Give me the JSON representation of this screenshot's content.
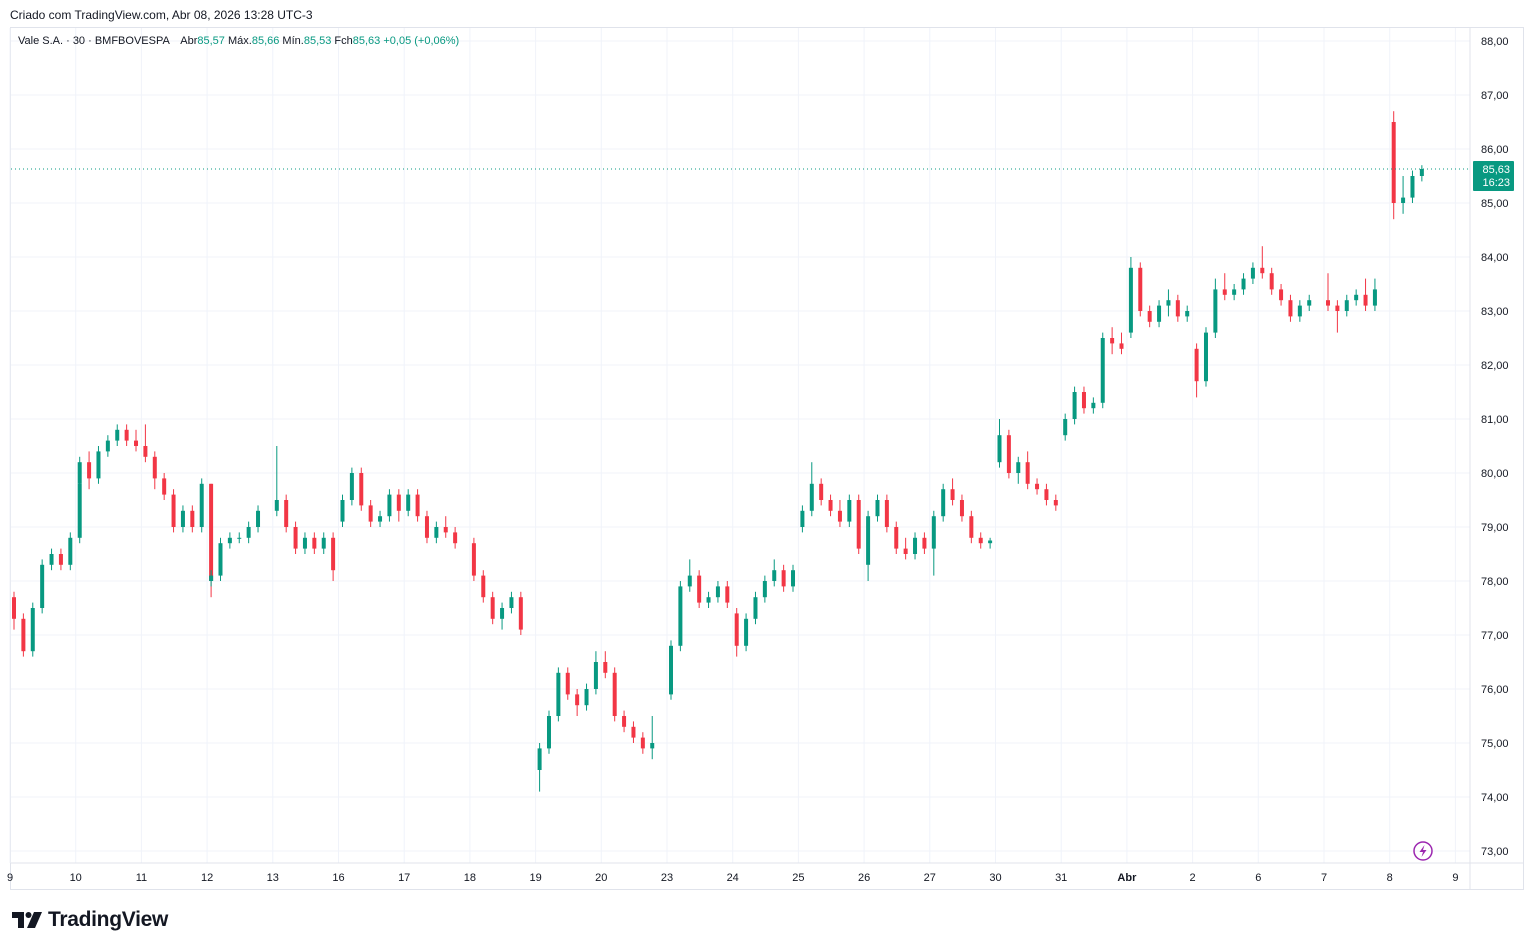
{
  "credit": "Criado com TradingView.com, Abr 08, 2026 13:28 UTC-3",
  "legend": {
    "symbol": "Vale S.A. · 30 · BMFBOVESPA",
    "open_label": "Abr",
    "open": "85,57",
    "high_label": "Máx.",
    "high": "85,66",
    "low_label": "Mín.",
    "low": "85,53",
    "close_label": "Fch",
    "close": "85,63",
    "change": "+0,05 (+0,06%)"
  },
  "last_price": {
    "price": "85,63",
    "countdown": "16:23",
    "value": 85.63
  },
  "logo": "TradingView",
  "colors": {
    "up": "#089981",
    "down": "#F23645",
    "grid": "#f0f3fa",
    "accent": "#089981",
    "alert_icon": "#9c27b0"
  },
  "icons": {
    "alert": "lightning-icon"
  },
  "chart_data": {
    "type": "candlestick",
    "interval": "30",
    "ylim": [
      73,
      88
    ],
    "grid": true,
    "y_ticks": [
      "88,00",
      "87,00",
      "86,00",
      "85,00",
      "84,00",
      "83,00",
      "82,00",
      "81,00",
      "80,00",
      "79,00",
      "78,00",
      "77,00",
      "76,00",
      "75,00",
      "74,00",
      "73,00"
    ],
    "x_ticks": [
      "9",
      "10",
      "11",
      "12",
      "13",
      "16",
      "17",
      "18",
      "19",
      "20",
      "23",
      "24",
      "25",
      "26",
      "27",
      "30",
      "31",
      "Abr",
      "2",
      "6",
      "7",
      "8",
      "9"
    ],
    "days": [
      {
        "day": "9",
        "candles": [
          [
            77.7,
            77.8,
            77.1,
            77.3
          ],
          [
            77.3,
            77.4,
            76.6,
            76.7
          ],
          [
            76.7,
            77.6,
            76.6,
            77.5
          ],
          [
            77.5,
            78.4,
            77.4,
            78.3
          ],
          [
            78.3,
            78.6,
            78.2,
            78.5
          ],
          [
            78.5,
            78.6,
            78.2,
            78.3
          ],
          [
            78.3,
            78.9,
            78.2,
            78.8
          ],
          [
            78.8,
            79.9,
            78.7,
            79.8
          ]
        ]
      },
      {
        "day": "10",
        "candles": [
          [
            79.8,
            80.3,
            79.5,
            80.2
          ],
          [
            80.2,
            80.4,
            79.7,
            79.9
          ],
          [
            79.9,
            80.5,
            79.8,
            80.4
          ],
          [
            80.4,
            80.7,
            80.3,
            80.6
          ],
          [
            80.6,
            80.9,
            80.5,
            80.8
          ],
          [
            80.8,
            80.9,
            80.5,
            80.6
          ],
          [
            80.6,
            80.8,
            80.4,
            80.5
          ]
        ]
      },
      {
        "day": "11",
        "candles": [
          [
            80.5,
            80.9,
            80.2,
            80.3
          ],
          [
            80.3,
            80.4,
            79.7,
            79.9
          ],
          [
            79.9,
            80.0,
            79.5,
            79.6
          ],
          [
            79.6,
            79.7,
            78.9,
            79.0
          ],
          [
            79.0,
            79.4,
            78.9,
            79.3
          ],
          [
            79.3,
            79.4,
            78.9,
            79.0
          ],
          [
            79.0,
            79.9,
            78.9,
            79.8
          ],
          [
            79.8,
            79.8,
            77.7,
            78.0
          ]
        ]
      },
      {
        "day": "12",
        "candles": [
          [
            78.0,
            78.2,
            77.9,
            78.1
          ],
          [
            78.1,
            78.8,
            78.0,
            78.7
          ],
          [
            78.7,
            78.9,
            78.6,
            78.8
          ],
          [
            78.8,
            78.9,
            78.7,
            78.8
          ],
          [
            78.8,
            79.1,
            78.7,
            79.0
          ],
          [
            79.0,
            79.4,
            78.9,
            79.3
          ]
        ]
      },
      {
        "day": "13",
        "candles": [
          [
            79.3,
            80.5,
            79.2,
            79.5
          ],
          [
            79.5,
            79.6,
            78.9,
            79.0
          ],
          [
            79.0,
            79.1,
            78.5,
            78.6
          ],
          [
            78.6,
            78.9,
            78.5,
            78.8
          ],
          [
            78.8,
            78.9,
            78.5,
            78.6
          ],
          [
            78.6,
            78.9,
            78.5,
            78.8
          ],
          [
            78.8,
            78.9,
            78.0,
            78.2
          ]
        ]
      },
      {
        "day": "16",
        "candles": [
          [
            79.1,
            79.6,
            79.0,
            79.5
          ],
          [
            79.5,
            80.1,
            79.4,
            80.0
          ],
          [
            80.0,
            80.1,
            79.3,
            79.4
          ],
          [
            79.4,
            79.5,
            79.0,
            79.1
          ],
          [
            79.1,
            79.3,
            79.0,
            79.2
          ],
          [
            79.2,
            79.7,
            79.1,
            79.6
          ],
          [
            79.6,
            79.7,
            79.1,
            79.3
          ]
        ]
      },
      {
        "day": "17",
        "candles": [
          [
            79.3,
            79.7,
            79.2,
            79.6
          ],
          [
            79.6,
            79.7,
            79.1,
            79.2
          ],
          [
            79.2,
            79.3,
            78.7,
            78.8
          ],
          [
            78.8,
            79.1,
            78.7,
            79.0
          ],
          [
            79.0,
            79.2,
            78.8,
            78.9
          ],
          [
            78.9,
            79.0,
            78.6,
            78.7
          ]
        ]
      },
      {
        "day": "18",
        "candles": [
          [
            78.7,
            78.8,
            78.0,
            78.1
          ],
          [
            78.1,
            78.2,
            77.6,
            77.7
          ],
          [
            77.7,
            77.8,
            77.2,
            77.3
          ],
          [
            77.3,
            77.6,
            77.1,
            77.5
          ],
          [
            77.5,
            77.8,
            77.4,
            77.7
          ],
          [
            77.7,
            77.8,
            77.0,
            77.1
          ]
        ]
      },
      {
        "day": "19",
        "candles": [
          [
            74.5,
            75.0,
            74.1,
            74.9
          ],
          [
            74.9,
            75.6,
            74.8,
            75.5
          ],
          [
            75.5,
            76.4,
            75.4,
            76.3
          ],
          [
            76.3,
            76.4,
            75.8,
            75.9
          ],
          [
            75.9,
            76.0,
            75.5,
            75.7
          ],
          [
            75.7,
            76.1,
            75.6,
            76.0
          ],
          [
            76.0,
            76.7,
            75.9,
            76.5
          ]
        ]
      },
      {
        "day": "20",
        "candles": [
          [
            76.5,
            76.7,
            76.2,
            76.3
          ],
          [
            76.3,
            76.4,
            75.4,
            75.5
          ],
          [
            75.5,
            75.6,
            75.2,
            75.3
          ],
          [
            75.3,
            75.4,
            75.0,
            75.1
          ],
          [
            75.1,
            75.2,
            74.8,
            74.9
          ],
          [
            74.9,
            75.5,
            74.7,
            75.0
          ]
        ]
      },
      {
        "day": "23",
        "candles": [
          [
            75.9,
            76.9,
            75.8,
            76.8
          ],
          [
            76.8,
            78.0,
            76.7,
            77.9
          ],
          [
            77.9,
            78.4,
            77.8,
            78.1
          ],
          [
            78.1,
            78.2,
            77.5,
            77.6
          ],
          [
            77.6,
            77.8,
            77.5,
            77.7
          ],
          [
            77.7,
            78.0,
            77.6,
            77.9
          ],
          [
            77.9,
            78.0,
            77.5,
            77.6
          ]
        ]
      },
      {
        "day": "24",
        "candles": [
          [
            77.4,
            77.5,
            76.6,
            76.8
          ],
          [
            76.8,
            77.4,
            76.7,
            77.3
          ],
          [
            77.3,
            77.8,
            77.2,
            77.7
          ],
          [
            77.7,
            78.1,
            77.6,
            78.0
          ],
          [
            78.0,
            78.4,
            77.9,
            78.2
          ],
          [
            78.2,
            78.3,
            77.8,
            77.9
          ],
          [
            77.9,
            78.3,
            77.8,
            78.2
          ]
        ]
      },
      {
        "day": "25",
        "candles": [
          [
            79.0,
            79.4,
            78.9,
            79.3
          ],
          [
            79.3,
            80.2,
            79.2,
            79.8
          ],
          [
            79.8,
            79.9,
            79.4,
            79.5
          ],
          [
            79.5,
            79.6,
            79.2,
            79.3
          ],
          [
            79.3,
            79.5,
            79.0,
            79.1
          ],
          [
            79.1,
            79.6,
            79.0,
            79.5
          ],
          [
            79.5,
            79.6,
            78.5,
            78.6
          ]
        ]
      },
      {
        "day": "26",
        "candles": [
          [
            78.3,
            79.3,
            78.0,
            79.2
          ],
          [
            79.2,
            79.6,
            79.1,
            79.5
          ],
          [
            79.5,
            79.6,
            78.9,
            79.0
          ],
          [
            79.0,
            79.1,
            78.5,
            78.6
          ],
          [
            78.6,
            78.8,
            78.4,
            78.5
          ],
          [
            78.5,
            78.9,
            78.4,
            78.8
          ],
          [
            78.8,
            78.9,
            78.5,
            78.6
          ]
        ]
      },
      {
        "day": "27",
        "candles": [
          [
            78.6,
            79.3,
            78.1,
            79.2
          ],
          [
            79.2,
            79.8,
            79.1,
            79.7
          ],
          [
            79.7,
            79.9,
            79.4,
            79.5
          ],
          [
            79.5,
            79.6,
            79.1,
            79.2
          ],
          [
            79.2,
            79.3,
            78.7,
            78.8
          ],
          [
            78.8,
            78.9,
            78.6,
            78.7
          ],
          [
            78.7,
            78.8,
            78.6,
            78.75
          ]
        ]
      },
      {
        "day": "30",
        "candles": [
          [
            80.2,
            81.0,
            80.1,
            80.7
          ],
          [
            80.7,
            80.8,
            79.9,
            80.0
          ],
          [
            80.0,
            80.3,
            79.8,
            80.2
          ],
          [
            80.2,
            80.4,
            79.7,
            79.8
          ],
          [
            79.8,
            79.9,
            79.6,
            79.7
          ],
          [
            79.7,
            79.8,
            79.4,
            79.5
          ],
          [
            79.5,
            79.6,
            79.3,
            79.4
          ]
        ]
      },
      {
        "day": "31",
        "candles": [
          [
            80.7,
            81.1,
            80.6,
            81.0
          ],
          [
            81.0,
            81.6,
            80.9,
            81.5
          ],
          [
            81.5,
            81.6,
            81.1,
            81.2
          ],
          [
            81.2,
            81.4,
            81.1,
            81.3
          ],
          [
            81.3,
            82.6,
            81.2,
            82.5
          ],
          [
            82.5,
            82.7,
            82.2,
            82.4
          ],
          [
            82.4,
            82.6,
            82.2,
            82.3
          ]
        ]
      },
      {
        "day": "Abr",
        "candles": [
          [
            82.6,
            84.0,
            82.5,
            83.8
          ],
          [
            83.8,
            83.9,
            82.9,
            83.0
          ],
          [
            83.0,
            83.1,
            82.7,
            82.8
          ],
          [
            82.8,
            83.2,
            82.7,
            83.1
          ],
          [
            83.1,
            83.4,
            82.9,
            83.2
          ],
          [
            83.2,
            83.3,
            82.8,
            82.9
          ],
          [
            82.9,
            83.1,
            82.8,
            83.0
          ]
        ]
      },
      {
        "day": "2",
        "candles": [
          [
            82.3,
            82.4,
            81.4,
            81.7
          ],
          [
            81.7,
            82.7,
            81.6,
            82.6
          ],
          [
            82.6,
            83.6,
            82.5,
            83.4
          ],
          [
            83.4,
            83.7,
            83.2,
            83.3
          ],
          [
            83.3,
            83.5,
            83.2,
            83.4
          ],
          [
            83.4,
            83.7,
            83.3,
            83.6
          ],
          [
            83.6,
            83.9,
            83.5,
            83.8
          ]
        ]
      },
      {
        "day": "6",
        "candles": [
          [
            83.8,
            84.2,
            83.6,
            83.7
          ],
          [
            83.7,
            83.8,
            83.3,
            83.4
          ],
          [
            83.4,
            83.5,
            83.1,
            83.2
          ],
          [
            83.2,
            83.3,
            82.8,
            82.9
          ],
          [
            82.9,
            83.2,
            82.8,
            83.1
          ],
          [
            83.1,
            83.3,
            83.0,
            83.2
          ]
        ]
      },
      {
        "day": "7",
        "candles": [
          [
            83.2,
            83.7,
            83.0,
            83.1
          ],
          [
            83.1,
            83.2,
            82.6,
            83.0
          ],
          [
            83.0,
            83.3,
            82.9,
            83.2
          ],
          [
            83.2,
            83.4,
            83.1,
            83.3
          ],
          [
            83.3,
            83.6,
            83.0,
            83.1
          ],
          [
            83.1,
            83.6,
            83.0,
            83.4
          ]
        ]
      },
      {
        "day": "8",
        "candles": [
          [
            86.5,
            86.7,
            84.7,
            85.0
          ],
          [
            85.0,
            85.5,
            84.8,
            85.1
          ],
          [
            85.1,
            85.6,
            85.0,
            85.5
          ],
          [
            85.5,
            85.7,
            85.4,
            85.63
          ]
        ]
      }
    ]
  }
}
